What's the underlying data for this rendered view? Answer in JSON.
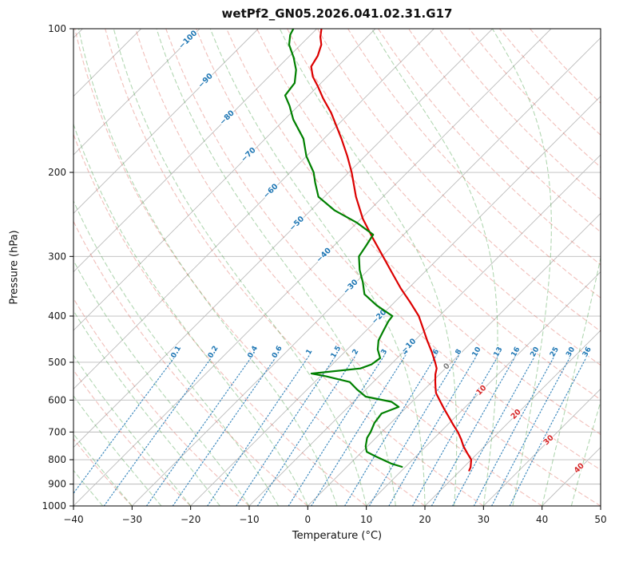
{
  "chart_data": {
    "type": "line",
    "variant": "skew-t-log-p-sounding",
    "title": "wetPf2_GN05.2026.041.02.31.G17",
    "xlabel": "Temperature (°C)",
    "ylabel": "Pressure (hPa)",
    "x_range": [
      -40,
      50
    ],
    "p_range": [
      100,
      1000
    ],
    "skew_degrees": 45,
    "x_ticks": [
      -40,
      -30,
      -20,
      -10,
      0,
      10,
      20,
      30,
      40,
      50
    ],
    "p_ticks": [
      100,
      200,
      300,
      400,
      500,
      600,
      700,
      800,
      900,
      1000
    ],
    "grid": true,
    "legend": "none",
    "series": [
      {
        "name": "temperature",
        "color": "#dc0000",
        "width": 2.2,
        "points": [
          [
            843,
            21.5
          ],
          [
            830,
            21.2
          ],
          [
            800,
            20.0
          ],
          [
            775,
            18.2
          ],
          [
            750,
            16.4
          ],
          [
            725,
            14.8
          ],
          [
            700,
            13.0
          ],
          [
            675,
            10.9
          ],
          [
            650,
            8.8
          ],
          [
            625,
            6.6
          ],
          [
            600,
            4.4
          ],
          [
            580,
            2.6
          ],
          [
            565,
            1.6
          ],
          [
            550,
            0.6
          ],
          [
            530,
            -0.7
          ],
          [
            515,
            -1.5
          ],
          [
            500,
            -2.8
          ],
          [
            475,
            -5.2
          ],
          [
            450,
            -7.9
          ],
          [
            425,
            -10.6
          ],
          [
            400,
            -13.5
          ],
          [
            375,
            -17.2
          ],
          [
            350,
            -21.3
          ],
          [
            325,
            -25.4
          ],
          [
            300,
            -29.8
          ],
          [
            275,
            -34.6
          ],
          [
            250,
            -39.7
          ],
          [
            225,
            -44.6
          ],
          [
            200,
            -49.5
          ],
          [
            185,
            -53.0
          ],
          [
            170,
            -57.0
          ],
          [
            160,
            -60.0
          ],
          [
            150,
            -63.2
          ],
          [
            140,
            -67.0
          ],
          [
            132,
            -70.0
          ],
          [
            126,
            -72.5
          ],
          [
            120,
            -74.5
          ],
          [
            114,
            -75.2
          ],
          [
            108,
            -76.5
          ],
          [
            104,
            -78.0
          ],
          [
            100,
            -79.2
          ]
        ]
      },
      {
        "name": "dewpoint",
        "color": "#008000",
        "width": 2.2,
        "points": [
          [
            828,
            9.4
          ],
          [
            815,
            7.0
          ],
          [
            800,
            4.9
          ],
          [
            785,
            2.8
          ],
          [
            770,
            0.8
          ],
          [
            750,
            -0.3
          ],
          [
            720,
            -1.5
          ],
          [
            700,
            -1.9
          ],
          [
            670,
            -2.8
          ],
          [
            640,
            -3.2
          ],
          [
            620,
            -1.4
          ],
          [
            605,
            -3.5
          ],
          [
            590,
            -8.8
          ],
          [
            570,
            -11.5
          ],
          [
            550,
            -14.0
          ],
          [
            535,
            -19.0
          ],
          [
            528,
            -22.0
          ],
          [
            515,
            -14.5
          ],
          [
            505,
            -13.3
          ],
          [
            490,
            -12.9
          ],
          [
            470,
            -14.8
          ],
          [
            450,
            -16.2
          ],
          [
            430,
            -17.0
          ],
          [
            410,
            -17.8
          ],
          [
            400,
            -18.0
          ],
          [
            380,
            -22.5
          ],
          [
            360,
            -26.5
          ],
          [
            340,
            -28.8
          ],
          [
            320,
            -31.5
          ],
          [
            300,
            -33.9
          ],
          [
            285,
            -34.5
          ],
          [
            270,
            -35.2
          ],
          [
            255,
            -40.0
          ],
          [
            240,
            -46.0
          ],
          [
            225,
            -51.0
          ],
          [
            210,
            -54.0
          ],
          [
            200,
            -56.0
          ],
          [
            185,
            -60.0
          ],
          [
            170,
            -63.5
          ],
          [
            155,
            -68.5
          ],
          [
            145,
            -71.5
          ],
          [
            138,
            -74.0
          ],
          [
            130,
            -74.5
          ],
          [
            122,
            -76.5
          ],
          [
            115,
            -79.0
          ],
          [
            108,
            -82.0
          ],
          [
            103,
            -83.5
          ],
          [
            100,
            -84.0
          ]
        ]
      }
    ],
    "isotherms": {
      "min_c": -160,
      "max_c": 60,
      "step_c": 10
    },
    "dry_adiabats": {
      "theta_min_c": -30,
      "theta_max_c": 170,
      "step_c": 10
    },
    "moist_adiabats": {
      "thetaw_min_c": -40,
      "thetaw_max_c": 45,
      "step_c": 5
    },
    "mixing_ratio_g_kg": [
      0.1,
      0.2,
      0.4,
      0.6,
      1,
      1.5,
      2,
      3,
      4,
      6,
      8,
      10,
      13,
      16,
      20,
      25,
      30,
      36
    ],
    "mixing_label_pressure": 478,
    "isotherm_labels": [
      {
        "t": -100,
        "p": 105
      },
      {
        "t": -90,
        "p": 128
      },
      {
        "t": -80,
        "p": 153
      },
      {
        "t": -70,
        "p": 183
      },
      {
        "t": -60,
        "p": 218
      },
      {
        "t": -50,
        "p": 255
      },
      {
        "t": -40,
        "p": 297
      },
      {
        "t": -30,
        "p": 346
      },
      {
        "t": -20,
        "p": 400
      },
      {
        "t": -10,
        "p": 460
      },
      {
        "t": 0,
        "p": 508
      },
      {
        "t": 10,
        "p": 570
      },
      {
        "t": 20,
        "p": 640
      },
      {
        "t": 30,
        "p": 725
      },
      {
        "t": 40,
        "p": 830
      }
    ],
    "colors": {
      "frame": "#000000",
      "isobar": "#bbbbbb",
      "isotherm": "#bbbbbb",
      "dry_adiabat": "rgba(214,72,58,0.35)",
      "moist_adiabat": "rgba(52,150,52,0.38)",
      "mixing_line": "rgba(31,119,180,0.85)",
      "mixing_label": "#1f77b4",
      "isotherm_label_negative": "#1f77b4",
      "isotherm_label_zero": "#7f7f7f",
      "isotherm_label_positive": "#d62728",
      "tick_text": "#1a1a1a"
    }
  }
}
